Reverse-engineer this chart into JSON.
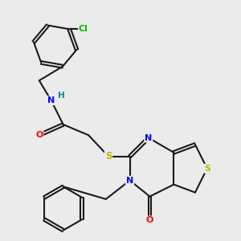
{
  "bg_color": "#ebebeb",
  "bond_color": "#1a1a1a",
  "atom_colors": {
    "N": "#0000ff",
    "O": "#ff0000",
    "S": "#b8b800",
    "Cl": "#00bb00",
    "H": "#008888",
    "C": "#1a1a1a"
  },
  "bond_width": 1.5,
  "dbo": 0.055,
  "figsize": [
    3.0,
    3.0
  ],
  "dpi": 100
}
